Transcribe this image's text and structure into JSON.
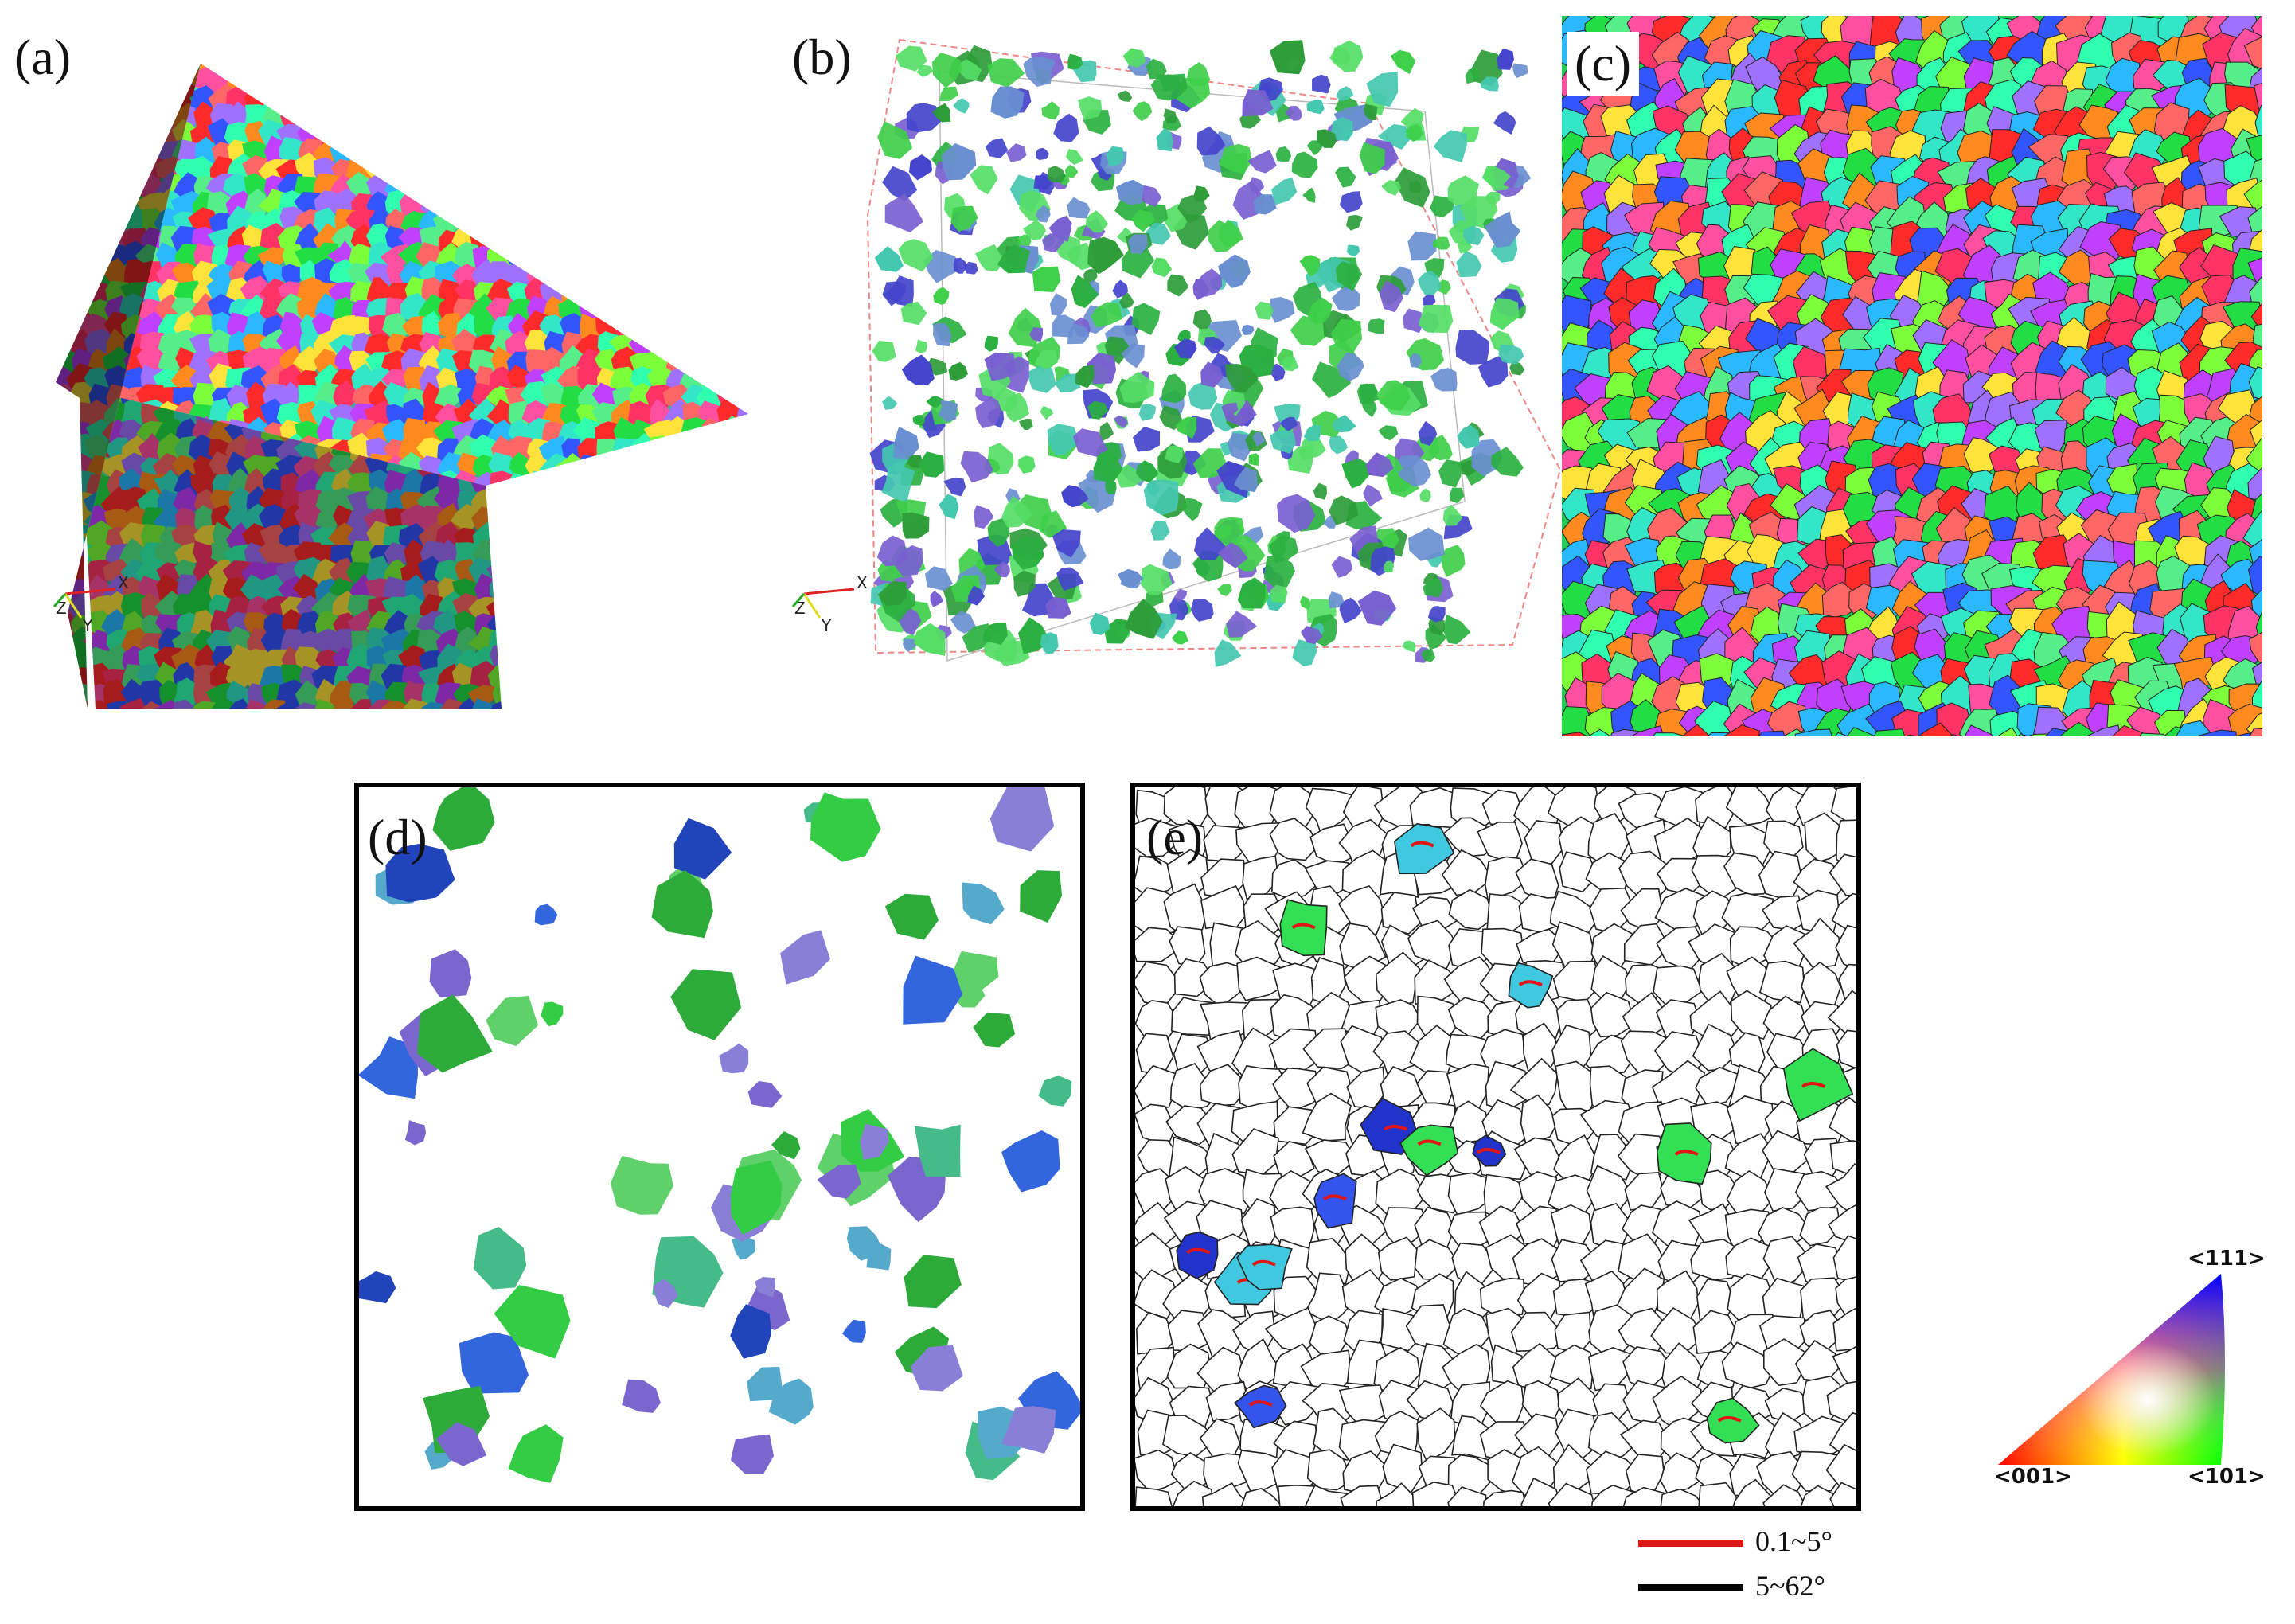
{
  "panels": {
    "a": {
      "label": "(a)"
    },
    "b": {
      "label": "(b)"
    },
    "c": {
      "label": "(c)"
    },
    "d": {
      "label": "(d)"
    },
    "e": {
      "label": "(e)"
    }
  },
  "axes_triad": {
    "x": "X",
    "y": "Y",
    "z": "Z"
  },
  "boundary_legend": [
    {
      "range": "0.1~5°",
      "color": "#e01515"
    },
    {
      "range": "5~62°",
      "color": "#000000"
    }
  ],
  "ipf_key": {
    "top": "<111>",
    "left": "<001>",
    "right": "<101>",
    "colors": {
      "001": "#ff0000",
      "101": "#00ff00",
      "111": "#0000ff"
    }
  },
  "grain_palette": [
    "#ff2a2a",
    "#22dd44",
    "#3355ff",
    "#ff8a1f",
    "#33e6c8",
    "#c040ff",
    "#ff4fa0",
    "#7cff3a",
    "#ffe23a",
    "#2ab8ff",
    "#ff6666",
    "#55ee88",
    "#a070ff",
    "#ff3366",
    "#30ffb0",
    "#ffffff"
  ]
}
